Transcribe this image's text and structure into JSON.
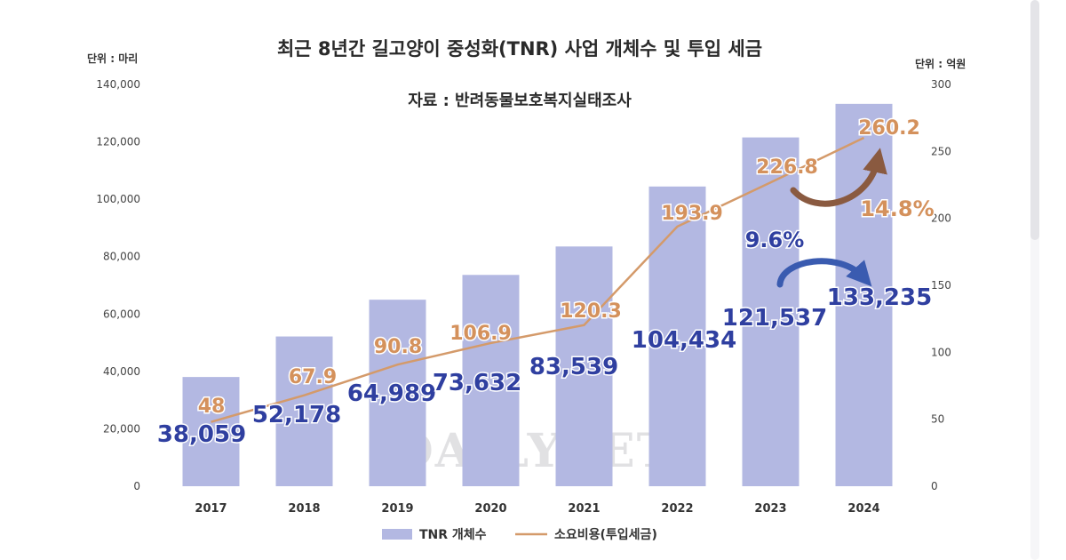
{
  "title": "최근 8년간 길고양이 중성화(TNR) 사업 개체수 및 투입 세금",
  "subtitle": "자료 : 반려동물보호복지실태조사",
  "left_unit": "단위 : 마리",
  "right_unit": "단위 : 억원",
  "watermark": "DAILYVET",
  "colors": {
    "bar": "#b3b8e2",
    "line": "#d49a6a",
    "count_label": "#2f3fa0",
    "cost_label": "#d4915c",
    "arrow_blue": "#3a5bb0",
    "arrow_brown": "#8a5a40"
  },
  "chart_data": {
    "type": "bar",
    "categories": [
      "2017",
      "2018",
      "2019",
      "2020",
      "2021",
      "2022",
      "2023",
      "2024"
    ],
    "series": [
      {
        "name": "TNR 개체수",
        "type": "bar",
        "axis": "left",
        "values": [
          38059,
          52178,
          64989,
          73632,
          83539,
          104434,
          121537,
          133235
        ],
        "labels": [
          "38,059",
          "52,178",
          "64,989",
          "73,632",
          "83,539",
          "104,434",
          "121,537",
          "133,235"
        ]
      },
      {
        "name": "소요비용(투입세금)",
        "type": "line",
        "axis": "right",
        "values": [
          48,
          67.9,
          90.8,
          106.9,
          120.3,
          193.9,
          226.8,
          260.2
        ],
        "labels": [
          "48",
          "67.9",
          "90.8",
          "106.9",
          "120.3",
          "193.9",
          "226.8",
          "260.2"
        ]
      }
    ],
    "left_axis": {
      "ylim": [
        0,
        140000
      ],
      "ticks": [
        0,
        20000,
        40000,
        60000,
        80000,
        100000,
        120000,
        140000
      ],
      "tick_labels": [
        "0",
        "20,000",
        "40,000",
        "60,000",
        "80,000",
        "100,000",
        "120,000",
        "140,000"
      ]
    },
    "right_axis": {
      "ylim": [
        0,
        300
      ],
      "ticks": [
        0,
        50,
        100,
        150,
        200,
        250,
        300
      ],
      "tick_labels": [
        "0",
        "50",
        "100",
        "150",
        "200",
        "250",
        "300"
      ]
    },
    "annotations": [
      {
        "text": "9.6%",
        "series": "TNR 개체수",
        "from": "2023",
        "to": "2024"
      },
      {
        "text": "14.8%",
        "series": "소요비용(투입세금)",
        "from": "2023",
        "to": "2024"
      }
    ],
    "grid": false,
    "legend": "bottom"
  }
}
